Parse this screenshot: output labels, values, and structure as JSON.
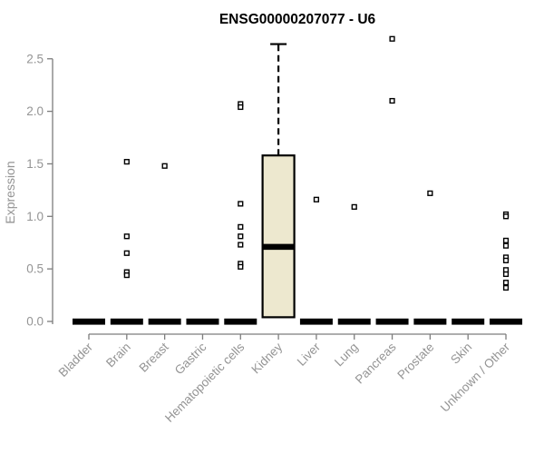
{
  "chart_data": {
    "type": "box",
    "title": "ENSG00000207077 - U6",
    "ylabel": "Expression",
    "xlabel": "",
    "ylim": [
      0,
      2.5
    ],
    "yticks": [
      0,
      0.5,
      1,
      1.5,
      2,
      2.5
    ],
    "grid": false,
    "legend": null,
    "categories": [
      "Bladder",
      "Brain",
      "Breast",
      "Gastric",
      "Hematopoietic cells",
      "Kidney",
      "Liver",
      "Lung",
      "Pancreas",
      "Prostate",
      "Skin",
      "Unknown / Other"
    ],
    "boxes": [
      {
        "category": "Bladder",
        "collapsed": true,
        "median": 0,
        "q1": 0,
        "q3": 0,
        "whisker_low": 0,
        "whisker_high": 0,
        "outliers": []
      },
      {
        "category": "Brain",
        "collapsed": true,
        "median": 0,
        "q1": 0,
        "q3": 0,
        "whisker_low": 0,
        "whisker_high": 0,
        "outliers": [
          1.52,
          0.81,
          0.65,
          0.47,
          0.44
        ]
      },
      {
        "category": "Breast",
        "collapsed": true,
        "median": 0,
        "q1": 0,
        "q3": 0,
        "whisker_low": 0,
        "whisker_high": 0,
        "outliers": [
          1.48
        ]
      },
      {
        "category": "Gastric",
        "collapsed": true,
        "median": 0,
        "q1": 0,
        "q3": 0,
        "whisker_low": 0,
        "whisker_high": 0,
        "outliers": []
      },
      {
        "category": "Hematopoietic cells",
        "collapsed": true,
        "median": 0,
        "q1": 0,
        "q3": 0,
        "whisker_low": 0,
        "whisker_high": 0,
        "outliers": [
          2.07,
          2.04,
          1.12,
          0.9,
          0.81,
          0.73,
          0.55,
          0.52
        ]
      },
      {
        "category": "Kidney",
        "collapsed": false,
        "median": 0.71,
        "q1": 0.04,
        "q3": 1.58,
        "whisker_low": 0.04,
        "whisker_high": 2.64,
        "outliers": []
      },
      {
        "category": "Liver",
        "collapsed": true,
        "median": 0,
        "q1": 0,
        "q3": 0,
        "whisker_low": 0,
        "whisker_high": 0,
        "outliers": [
          1.16
        ]
      },
      {
        "category": "Lung",
        "collapsed": true,
        "median": 0,
        "q1": 0,
        "q3": 0,
        "whisker_low": 0,
        "whisker_high": 0,
        "outliers": [
          1.09
        ]
      },
      {
        "category": "Pancreas",
        "collapsed": true,
        "median": 0,
        "q1": 0,
        "q3": 0,
        "whisker_low": 0,
        "whisker_high": 0,
        "outliers": [
          2.69,
          2.1
        ]
      },
      {
        "category": "Prostate",
        "collapsed": true,
        "median": 0,
        "q1": 0,
        "q3": 0,
        "whisker_low": 0,
        "whisker_high": 0,
        "outliers": [
          1.22
        ]
      },
      {
        "category": "Skin",
        "collapsed": true,
        "median": 0,
        "q1": 0,
        "q3": 0,
        "whisker_low": 0,
        "whisker_high": 0,
        "outliers": []
      },
      {
        "category": "Unknown / Other",
        "collapsed": true,
        "median": 0,
        "q1": 0,
        "q3": 0,
        "whisker_low": 0,
        "whisker_high": 0,
        "outliers": [
          1.02,
          1.0,
          0.77,
          0.72,
          0.61,
          0.58,
          0.49,
          0.45,
          0.37,
          0.32
        ]
      }
    ],
    "colors": {
      "background": "#ffffff",
      "title": "#000000",
      "axis_line": "#7d7d7d",
      "tick_text": "#949494",
      "box_fill": "#ede8cf",
      "box_stroke": "#000000",
      "median": "#000000",
      "zero_dash": "#000000",
      "outlier_stroke": "#000000",
      "outlier_fill": "#ffffff"
    }
  }
}
